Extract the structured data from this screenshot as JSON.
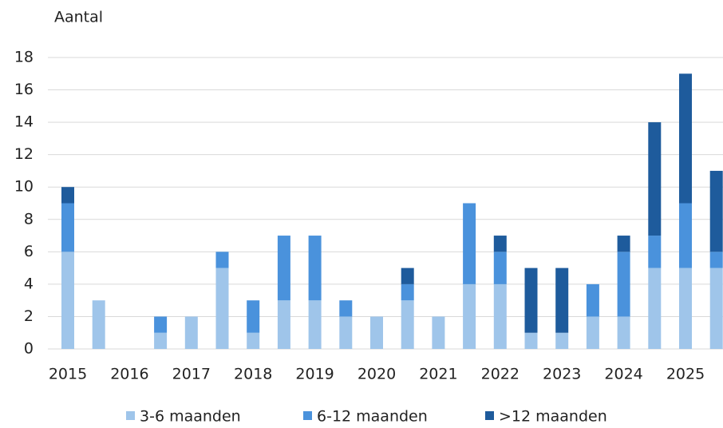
{
  "chart_data": {
    "type": "stacked-bar",
    "y_label": "Aantal",
    "categories": [
      "2015",
      null,
      "2016",
      null,
      "2017",
      null,
      "2018",
      null,
      "2019",
      null,
      "2020",
      null,
      "2021",
      null,
      "2022",
      null,
      "2023",
      null,
      "2024",
      null,
      "2025",
      null
    ],
    "series": [
      {
        "name": "3-6 maanden",
        "color": "#9fc5ea",
        "values": [
          6,
          3,
          0,
          1,
          2,
          5,
          1,
          3,
          3,
          2,
          2,
          3,
          2,
          4,
          4,
          1,
          1,
          2,
          2,
          5,
          5,
          5
        ]
      },
      {
        "name": "6-12 maanden",
        "color": "#4a92dc",
        "values": [
          3,
          0,
          0,
          1,
          0,
          1,
          2,
          4,
          4,
          1,
          0,
          1,
          0,
          5,
          2,
          0,
          0,
          2,
          4,
          2,
          4,
          1
        ]
      },
      {
        "name": ">12 maanden",
        "color": "#1e5b9c",
        "values": [
          1,
          0,
          0,
          0,
          0,
          0,
          0,
          0,
          0,
          0,
          0,
          1,
          0,
          0,
          1,
          4,
          4,
          0,
          1,
          7,
          8,
          5
        ]
      }
    ],
    "ylim": [
      0,
      18
    ],
    "yticks": [
      0,
      2,
      4,
      6,
      8,
      10,
      12,
      14,
      16,
      18
    ],
    "grid": true,
    "legend": "bottom"
  }
}
